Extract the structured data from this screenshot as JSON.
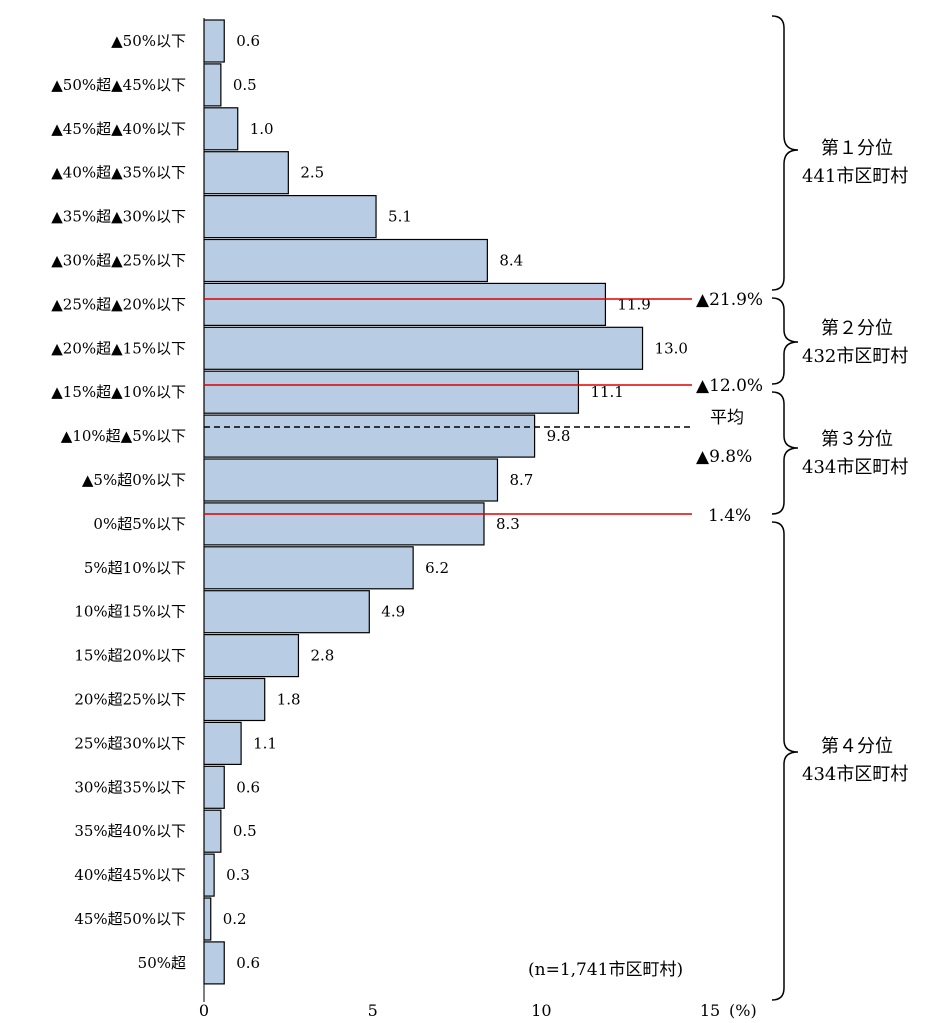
{
  "chart_data": {
    "type": "bar",
    "orientation": "horizontal",
    "categories": [
      "▲50%以下",
      "▲50%超▲45%以下",
      "▲45%超▲40%以下",
      "▲40%超▲35%以下",
      "▲35%超▲30%以下",
      "▲30%超▲25%以下",
      "▲25%超▲20%以下",
      "▲20%超▲15%以下",
      "▲15%超▲10%以下",
      "▲10%超▲5%以下",
      "▲5%超0%以下",
      "0%超5%以下",
      "5%超10%以下",
      "10%超15%以下",
      "15%超20%以下",
      "20%超25%以下",
      "25%超30%以下",
      "30%超35%以下",
      "35%超40%以下",
      "40%超45%以下",
      "45%超50%以下",
      "50%超"
    ],
    "values": [
      0.6,
      0.5,
      1.0,
      2.5,
      5.1,
      8.4,
      11.9,
      13.0,
      11.1,
      9.8,
      8.7,
      8.3,
      6.2,
      4.9,
      2.8,
      1.8,
      1.1,
      0.6,
      0.5,
      0.3,
      0.2,
      0.6
    ],
    "value_labels": [
      "0.6",
      "0.5",
      "1.0",
      "2.5",
      "5.1",
      "8.4",
      "11.9",
      "13.0",
      "11.1",
      "9.8",
      "8.7",
      "8.3",
      "6.2",
      "4.9",
      "2.8",
      "1.8",
      "1.1",
      "0.6",
      "0.5",
      "0.3",
      "0.2",
      "0.6"
    ],
    "xlim": [
      0,
      15
    ],
    "xticks": [
      "0",
      "5",
      "10",
      "15"
    ],
    "xunit": "(%)",
    "bar_color": "#b8cce4",
    "note": "(n=1,741市区町村)",
    "threshold_lines": [
      {
        "label": "▲21.9%",
        "color": "#e00000",
        "style": "solid"
      },
      {
        "label": "▲12.0%",
        "color": "#e00000",
        "style": "solid"
      },
      {
        "label": "1.4%",
        "color": "#e00000",
        "style": "solid"
      }
    ],
    "mean_line": {
      "label_top": "平均",
      "label_bottom": "▲9.8%",
      "color": "#000000",
      "style": "dashed"
    },
    "quartiles": [
      {
        "name": "第１分位",
        "count": "441市区町村"
      },
      {
        "name": "第２分位",
        "count": "432市区町村"
      },
      {
        "name": "第３分位",
        "count": "434市区町村"
      },
      {
        "name": "第４分位",
        "count": "434市区町村"
      }
    ]
  }
}
